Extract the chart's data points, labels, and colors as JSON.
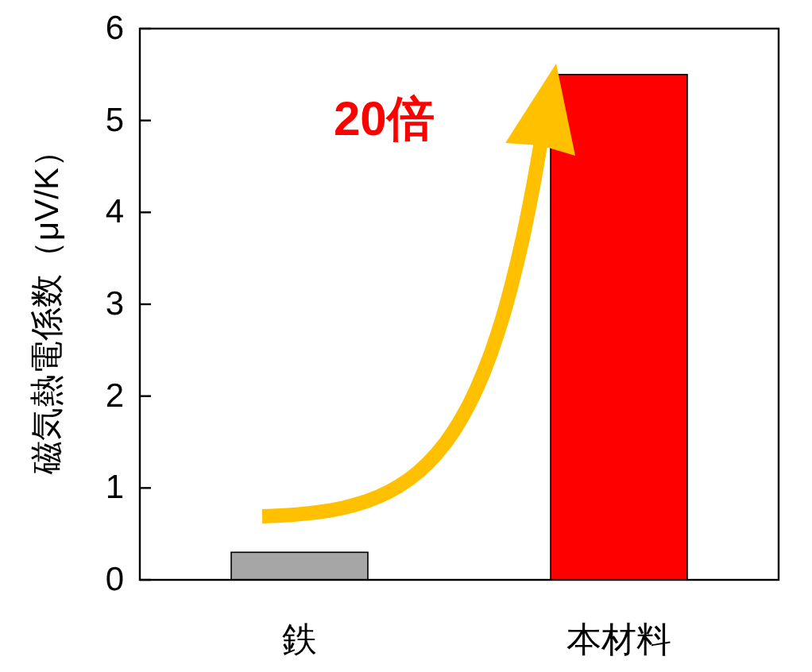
{
  "chart_data": {
    "type": "bar",
    "ylabel": "磁気熱電係数（μV/K）",
    "categories": [
      "鉄",
      "本材料"
    ],
    "values": [
      0.3,
      5.5
    ],
    "colors": [
      "#a6a6a6",
      "#ff0000"
    ],
    "ylim": [
      0,
      6
    ],
    "yticks": [
      0,
      1,
      2,
      3,
      4,
      5,
      6
    ],
    "grid": false,
    "annotations": [
      "20倍"
    ]
  }
}
